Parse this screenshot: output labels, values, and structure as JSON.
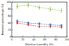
{
  "chart_data": {
    "type": "line",
    "x_label": "Relative humidity (%)",
    "y_label": "Removal percentage (%)",
    "x": [
      10,
      30,
      50,
      70,
      90
    ],
    "xlim": [
      0,
      100
    ],
    "xticks": [
      0,
      20,
      40,
      60,
      80,
      100
    ],
    "ylim": [
      0,
      100
    ],
    "yticks": [
      0,
      20,
      40,
      60,
      80,
      100
    ],
    "series": [
      {
        "color": "#7cb82f",
        "marker": "triangle",
        "line_style": "dashed",
        "values": [
          88,
          92,
          85,
          80,
          76
        ],
        "errors": [
          6,
          6,
          5,
          6,
          5
        ]
      },
      {
        "color": "#3a6fc4",
        "marker": "square",
        "line_style": "dashed",
        "values": [
          45,
          40,
          38,
          35,
          33
        ],
        "errors": [
          4,
          3,
          3,
          3,
          3
        ]
      },
      {
        "color": "#d9362b",
        "marker": "circle",
        "line_style": "dashed",
        "values": [
          40,
          35,
          30,
          30,
          28
        ],
        "errors": [
          3,
          3,
          3,
          3,
          3
        ]
      }
    ]
  }
}
